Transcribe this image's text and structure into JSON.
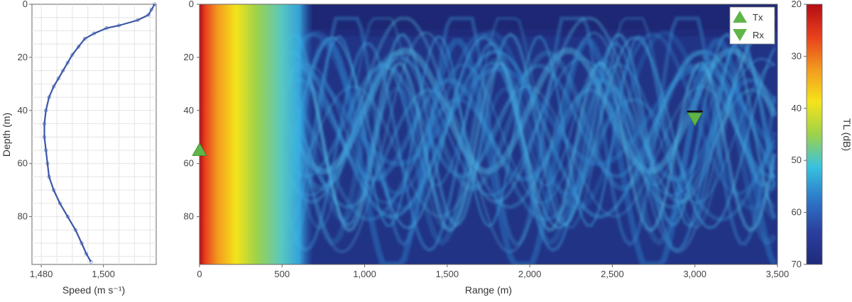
{
  "chart_data": [
    {
      "type": "line",
      "xlabel": "Speed (m s⁻¹)",
      "ylabel": "Depth (m)",
      "xlim": [
        1477,
        1517
      ],
      "ylim": [
        0,
        98
      ],
      "x_ticks": [
        {
          "v": 1480,
          "label": "1,480"
        },
        {
          "v": 1500,
          "label": "1,500"
        }
      ],
      "y_ticks": [
        {
          "v": 0,
          "label": "0"
        },
        {
          "v": 20,
          "label": "20"
        },
        {
          "v": 40,
          "label": "40"
        },
        {
          "v": 60,
          "label": "60"
        },
        {
          "v": 80,
          "label": "80"
        }
      ],
      "grid": true,
      "series": [
        {
          "color": "#3a56a8",
          "points": [
            [
              1516.5,
              0
            ],
            [
              1515.5,
              2
            ],
            [
              1514.5,
              4
            ],
            [
              1511,
              6
            ],
            [
              1505,
              8
            ],
            [
              1501,
              9
            ],
            [
              1497,
              11
            ],
            [
              1494,
              13
            ],
            [
              1492,
              16
            ],
            [
              1490,
              19
            ],
            [
              1488.5,
              22
            ],
            [
              1487,
              25
            ],
            [
              1485.5,
              28
            ],
            [
              1484,
              31
            ],
            [
              1482.5,
              35
            ],
            [
              1481.5,
              40
            ],
            [
              1481,
              45
            ],
            [
              1481,
              50
            ],
            [
              1481.5,
              55
            ],
            [
              1482,
              60
            ],
            [
              1482.5,
              65
            ],
            [
              1484,
              70
            ],
            [
              1486,
              75
            ],
            [
              1488.5,
              80
            ],
            [
              1491,
              85
            ],
            [
              1493,
              90
            ],
            [
              1494.5,
              94
            ],
            [
              1496,
              97
            ]
          ]
        }
      ]
    },
    {
      "type": "heatmap",
      "xlabel": "Range (m)",
      "ylabel": "",
      "xlim": [
        0,
        3500
      ],
      "ylim": [
        0,
        98
      ],
      "x_ticks": [
        {
          "v": 0,
          "label": "0"
        },
        {
          "v": 500,
          "label": "500"
        },
        {
          "v": 1000,
          "label": "1,000"
        },
        {
          "v": 1500,
          "label": "1,500"
        },
        {
          "v": 2000,
          "label": "2,000"
        },
        {
          "v": 2500,
          "label": "2,500"
        },
        {
          "v": 3000,
          "label": "3,000"
        },
        {
          "v": 3500,
          "label": "3,500"
        }
      ],
      "y_ticks": [
        {
          "v": 0,
          "label": "0"
        },
        {
          "v": 20,
          "label": "20"
        },
        {
          "v": 40,
          "label": "40"
        },
        {
          "v": 60,
          "label": "60"
        },
        {
          "v": 80,
          "label": "80"
        }
      ],
      "colorbar": {
        "label": "TL (dB)",
        "range": [
          20,
          70
        ],
        "ticks": [
          {
            "v": 20,
            "label": "20"
          },
          {
            "v": 30,
            "label": "30"
          },
          {
            "v": 40,
            "label": "40"
          },
          {
            "v": 50,
            "label": "50"
          },
          {
            "v": 60,
            "label": "60"
          },
          {
            "v": 70,
            "label": "70"
          }
        ],
        "colors": [
          "#b30d13",
          "#e8401c",
          "#f39a1f",
          "#f5e31a",
          "#9ed24a",
          "#38c2e0",
          "#2d78c8",
          "#2b3f9e",
          "#1f2a7a"
        ]
      },
      "legend": {
        "position": "top-right",
        "items": [
          {
            "label": "Tx",
            "marker": "triangle-up",
            "color": "#5fb548"
          },
          {
            "label": "Rx",
            "marker": "triangle-down",
            "color": "#5fb548"
          }
        ]
      },
      "markers": [
        {
          "name": "Tx",
          "range": 0,
          "depth": 55
        },
        {
          "name": "Rx",
          "range": 3000,
          "depth": 42
        }
      ]
    }
  ]
}
